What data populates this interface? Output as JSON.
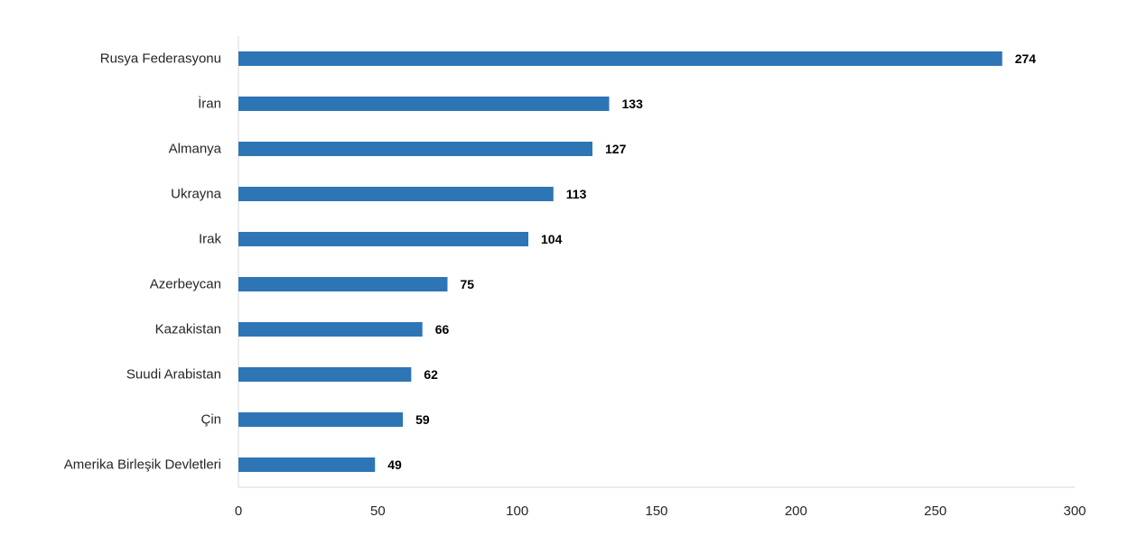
{
  "chart_data": {
    "type": "bar",
    "orientation": "horizontal",
    "categories": [
      "Rusya Federasyonu",
      "İran",
      "Almanya",
      "Ukrayna",
      "Irak",
      "Azerbeycan",
      "Kazakistan",
      "Suudi Arabistan",
      "Çin",
      "Amerika Birleşik Devletleri"
    ],
    "values": [
      274,
      133,
      127,
      113,
      104,
      75,
      66,
      62,
      59,
      49
    ],
    "data_labels": [
      "274",
      "133",
      "127",
      "113",
      "104",
      "75",
      "66",
      "62",
      "59",
      "49"
    ],
    "xlim": [
      0,
      300
    ],
    "x_ticks": [
      0,
      50,
      100,
      150,
      200,
      250,
      300
    ],
    "x_tick_labels": [
      "0",
      "50",
      "100",
      "150",
      "200",
      "250",
      "300"
    ],
    "title": "",
    "xlabel": "",
    "ylabel": "",
    "grid": false,
    "legend": "none",
    "colors": {
      "bar": "#2E75B6",
      "axis": "#D9D9D9",
      "text": "#262626",
      "value_text": "#000000"
    }
  }
}
